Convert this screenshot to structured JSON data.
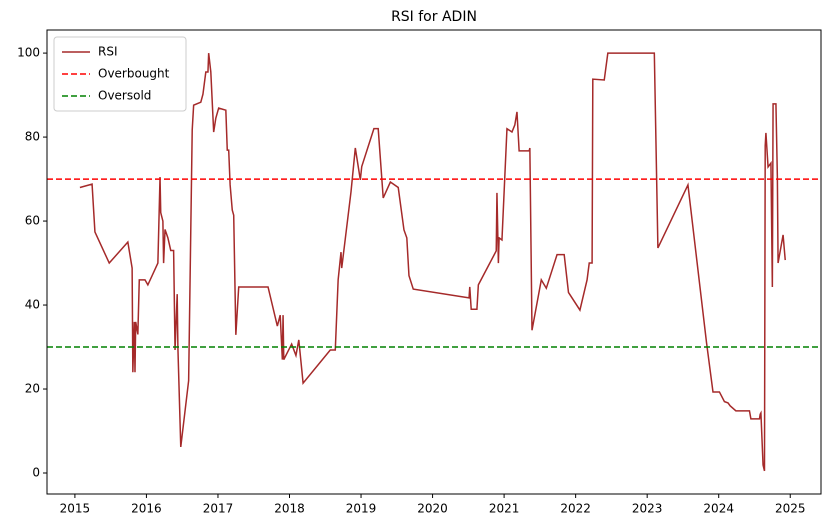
{
  "chart_data": {
    "type": "line",
    "title": "RSI for ADIN",
    "x": [
      2015.07,
      2015.24,
      2015.28,
      2015.48,
      2015.74,
      2015.8,
      2015.81,
      2015.83,
      2015.84,
      2015.85,
      2015.88,
      2015.9,
      2015.98,
      2016.02,
      2016.16,
      2016.19,
      2016.2,
      2016.23,
      2016.24,
      2016.26,
      2016.3,
      2016.34,
      2016.38,
      2016.4,
      2016.43,
      2016.44,
      2016.48,
      2016.59,
      2016.64,
      2016.66,
      2016.76,
      2016.79,
      2016.83,
      2016.86,
      2016.87,
      2016.9,
      2016.94,
      2016.97,
      2017.01,
      2017.11,
      2017.13,
      2017.15,
      2017.17,
      2017.2,
      2017.22,
      2017.25,
      2017.29,
      2017.7,
      2017.83,
      2017.87,
      2017.9,
      2017.91,
      2017.92,
      2018.03,
      2018.09,
      2018.13,
      2018.19,
      2018.57,
      2018.64,
      2018.68,
      2018.72,
      2018.73,
      2018.86,
      2018.92,
      2018.99,
      2019.01,
      2019.18,
      2019.24,
      2019.31,
      2019.41,
      2019.52,
      2019.6,
      2019.64,
      2019.67,
      2019.73,
      2020.51,
      2020.52,
      2020.54,
      2020.62,
      2020.64,
      2020.89,
      2020.9,
      2020.92,
      2020.93,
      2020.97,
      2021.04,
      2021.11,
      2021.15,
      2021.18,
      2021.21,
      2021.35,
      2021.36,
      2021.39,
      2021.52,
      2021.59,
      2021.74,
      2021.84,
      2021.9,
      2022.06,
      2022.16,
      2022.19,
      2022.23,
      2022.24,
      2022.4,
      2022.45,
      2023.1,
      2023.15,
      2023.57,
      2023.83,
      2023.92,
      2024.01,
      2024.08,
      2024.13,
      2024.16,
      2024.24,
      2024.43,
      2024.45,
      2024.57,
      2024.58,
      2024.59,
      2024.62,
      2024.64,
      2024.65,
      2024.66,
      2024.69,
      2024.73,
      2024.75,
      2024.76,
      2024.8,
      2024.82,
      2024.83,
      2024.9,
      2024.93
    ],
    "series": [
      {
        "name": "RSI",
        "color": "#a52a2a",
        "values": [
          68,
          68.8,
          57.4,
          50,
          55,
          48.8,
          24,
          36,
          24,
          36,
          33,
          46,
          46,
          44.8,
          50,
          70.5,
          62,
          60,
          50,
          58,
          56,
          53,
          53,
          29.3,
          42.6,
          29.8,
          6.2,
          22,
          81.7,
          87.6,
          88.3,
          90.2,
          95.5,
          95.5,
          100,
          95.5,
          81.2,
          84.5,
          86.9,
          86.4,
          76.9,
          76.9,
          68.6,
          62.6,
          61.4,
          32.9,
          44.3,
          44.3,
          35,
          37.6,
          27,
          37.6,
          27,
          30.7,
          28,
          31.7,
          21.4,
          29.3,
          29.3,
          46,
          52.6,
          48.8,
          67,
          77.4,
          69.8,
          73,
          82,
          82,
          65.5,
          69.3,
          68,
          57.9,
          56,
          47,
          43.8,
          41.7,
          44.3,
          39,
          39,
          44.8,
          52.9,
          66.7,
          50,
          56,
          55.5,
          82,
          81.2,
          82.9,
          86,
          76.7,
          76.7,
          77.4,
          34,
          46,
          44,
          52,
          52,
          43,
          38.8,
          46,
          50,
          50,
          93.8,
          93.6,
          100,
          100,
          53.6,
          68.6,
          31,
          19.3,
          19.3,
          17,
          16.7,
          16,
          14.8,
          14.8,
          12.9,
          12.9,
          14,
          14.3,
          1.9,
          0.5,
          77.9,
          81,
          72.9,
          73.8,
          44.3,
          87.9,
          87.9,
          70.5,
          50,
          56.7,
          50.7
        ]
      }
    ],
    "reference_lines": [
      {
        "name": "Overbought",
        "value": 70,
        "color": "#ff0000"
      },
      {
        "name": "Oversold",
        "value": 30,
        "color": "#008000"
      }
    ],
    "xlim": [
      2014.61,
      2025.43
    ],
    "xticks": [
      2015,
      2016,
      2017,
      2018,
      2019,
      2020,
      2021,
      2022,
      2023,
      2024,
      2025
    ],
    "ylim": [
      -5,
      105.5
    ],
    "yticks": [
      0,
      20,
      40,
      60,
      80,
      100
    ],
    "legend": "upper left"
  }
}
